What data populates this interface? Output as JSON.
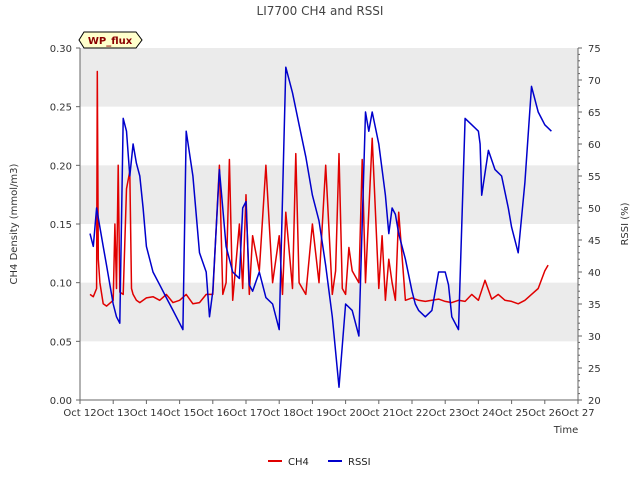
{
  "chart_data": {
    "type": "line",
    "title": "LI7700 CH4 and RSSI",
    "badge": "WP_flux",
    "xlabel": "Time",
    "ylabel_left": "CH4 Density (mmol/m3)",
    "ylabel_right": "RSSI (%)",
    "x_ticks": [
      "Oct 12",
      "Oct 13",
      "Oct 14",
      "Oct 15",
      "Oct 16",
      "Oct 17",
      "Oct 18",
      "Oct 19",
      "Oct 20",
      "Oct 21",
      "Oct 22",
      "Oct 23",
      "Oct 24",
      "Oct 25",
      "Oct 26",
      "Oct 27"
    ],
    "y_left_ticks": [
      "0.00",
      "0.05",
      "0.10",
      "0.15",
      "0.20",
      "0.25",
      "0.30"
    ],
    "y_right_ticks": [
      "20",
      "25",
      "30",
      "35",
      "40",
      "45",
      "50",
      "55",
      "60",
      "65",
      "70",
      "75"
    ],
    "xlim": [
      12,
      27
    ],
    "ylim_left": [
      0,
      0.3
    ],
    "ylim_right": [
      20,
      75
    ],
    "grid": "horizontal bands",
    "legend_position": "bottom-center",
    "colors": {
      "CH4": "#e00000",
      "RSSI": "#0000cc",
      "band": "#ebebeb",
      "badge_bg": "#ffffcc"
    },
    "series": [
      {
        "name": "CH4",
        "axis": "left",
        "x": [
          12.3,
          12.4,
          12.5,
          12.52,
          12.55,
          12.6,
          12.7,
          12.8,
          13.0,
          13.05,
          13.1,
          13.15,
          13.2,
          13.3,
          13.4,
          13.5,
          13.55,
          13.6,
          13.7,
          13.8,
          14.0,
          14.2,
          14.4,
          14.6,
          14.8,
          15.0,
          15.2,
          15.4,
          15.6,
          15.8,
          16.0,
          16.2,
          16.3,
          16.4,
          16.5,
          16.6,
          16.8,
          16.9,
          17.0,
          17.1,
          17.2,
          17.4,
          17.6,
          17.8,
          18.0,
          18.1,
          18.2,
          18.4,
          18.5,
          18.6,
          18.8,
          19.0,
          19.2,
          19.4,
          19.6,
          19.7,
          19.8,
          19.9,
          20.0,
          20.1,
          20.2,
          20.4,
          20.5,
          20.6,
          20.8,
          21.0,
          21.1,
          21.2,
          21.3,
          21.4,
          21.5,
          21.6,
          21.8,
          22.0,
          22.2,
          22.4,
          22.6,
          22.8,
          23.0,
          23.2,
          23.4,
          23.6,
          23.8,
          24.0,
          24.2,
          24.4,
          24.6,
          24.8,
          25.0,
          25.2,
          25.4,
          25.6,
          25.8,
          26.0,
          26.1
        ],
        "y": [
          0.09,
          0.088,
          0.095,
          0.28,
          0.12,
          0.1,
          0.082,
          0.08,
          0.085,
          0.15,
          0.095,
          0.2,
          0.092,
          0.09,
          0.18,
          0.195,
          0.095,
          0.09,
          0.085,
          0.083,
          0.087,
          0.088,
          0.085,
          0.09,
          0.083,
          0.085,
          0.09,
          0.082,
          0.083,
          0.09,
          0.09,
          0.2,
          0.09,
          0.1,
          0.205,
          0.085,
          0.15,
          0.095,
          0.175,
          0.09,
          0.14,
          0.11,
          0.2,
          0.1,
          0.14,
          0.09,
          0.16,
          0.095,
          0.21,
          0.1,
          0.09,
          0.15,
          0.1,
          0.2,
          0.09,
          0.11,
          0.21,
          0.095,
          0.09,
          0.13,
          0.11,
          0.1,
          0.205,
          0.1,
          0.223,
          0.095,
          0.14,
          0.085,
          0.12,
          0.1,
          0.085,
          0.16,
          0.085,
          0.087,
          0.085,
          0.084,
          0.085,
          0.086,
          0.084,
          0.083,
          0.085,
          0.084,
          0.09,
          0.085,
          0.102,
          0.086,
          0.09,
          0.085,
          0.084,
          0.082,
          0.085,
          0.09,
          0.095,
          0.11,
          0.115
        ]
      },
      {
        "name": "RSSI",
        "axis": "right",
        "x": [
          12.3,
          12.4,
          12.5,
          12.6,
          12.7,
          12.8,
          13.0,
          13.1,
          13.2,
          13.3,
          13.4,
          13.5,
          13.6,
          13.7,
          13.8,
          13.9,
          14.0,
          14.2,
          14.4,
          14.6,
          14.8,
          15.0,
          15.1,
          15.2,
          15.4,
          15.6,
          15.8,
          15.9,
          16.0,
          16.2,
          16.4,
          16.6,
          16.8,
          16.9,
          17.0,
          17.1,
          17.2,
          17.4,
          17.6,
          17.8,
          18.0,
          18.2,
          18.4,
          18.6,
          18.8,
          18.9,
          19.0,
          19.2,
          19.4,
          19.6,
          19.8,
          20.0,
          20.2,
          20.4,
          20.6,
          20.7,
          20.8,
          21.0,
          21.2,
          21.3,
          21.4,
          21.5,
          21.6,
          21.8,
          22.0,
          22.1,
          22.2,
          22.4,
          22.6,
          22.8,
          23.0,
          23.1,
          23.2,
          23.4,
          23.6,
          23.8,
          24.0,
          24.05,
          24.1,
          24.3,
          24.5,
          24.7,
          24.9,
          25.0,
          25.2,
          25.4,
          25.6,
          25.8,
          25.9,
          26.0,
          26.2
        ],
        "y": [
          46.0,
          44.0,
          50.0,
          47.0,
          44.0,
          41.0,
          35.0,
          33.0,
          32.0,
          64.0,
          62.0,
          55.0,
          60.0,
          57.0,
          55.0,
          50.0,
          44.0,
          40.0,
          38.0,
          36.0,
          34.0,
          32.0,
          31.0,
          62.0,
          55.0,
          43.0,
          40.0,
          33.0,
          37.0,
          56.0,
          44.0,
          40.0,
          39.0,
          50.0,
          51.0,
          38.0,
          37.0,
          40.0,
          36.0,
          35.0,
          31.0,
          72.0,
          68.0,
          63.0,
          58.0,
          55.0,
          52.0,
          48.0,
          41.0,
          33.0,
          22.0,
          35.0,
          34.0,
          30.0,
          65.0,
          62.0,
          65.0,
          60.0,
          52.0,
          46.0,
          50.0,
          49.0,
          46.0,
          42.0,
          37.0,
          35.0,
          34.0,
          33.0,
          34.0,
          40.0,
          40.0,
          38.0,
          33.0,
          31.0,
          64.0,
          63.0,
          62.0,
          60.0,
          52.0,
          59.0,
          56.0,
          55.0,
          50.0,
          47.0,
          43.0,
          54.0,
          69.0,
          65.0,
          64.0,
          63.0,
          62.0
        ]
      }
    ]
  }
}
